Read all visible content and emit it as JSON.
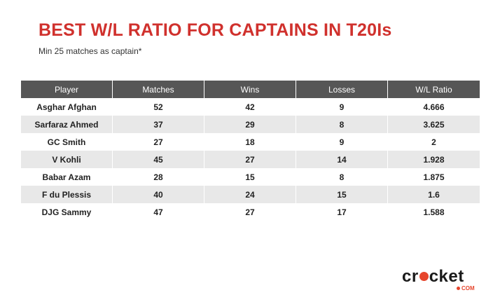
{
  "title": "BEST W/L RATIO FOR CAPTAINS IN T20Is",
  "subtitle": "Min 25 matches as captain*",
  "colors": {
    "title": "#d0312d",
    "header_bg": "#565656",
    "alt_row_bg": "#e8e8e8",
    "logo_accent": "#e6452c"
  },
  "logo": {
    "word_left": "cr",
    "word_right": "cket",
    "suffix": "COM"
  },
  "chart_data": {
    "type": "table",
    "columns": [
      "Player",
      "Matches",
      "Wins",
      "Losses",
      "W/L Ratio"
    ],
    "rows": [
      [
        "Asghar Afghan",
        "52",
        "42",
        "9",
        "4.666"
      ],
      [
        "Sarfaraz Ahmed",
        "37",
        "29",
        "8",
        "3.625"
      ],
      [
        "GC Smith",
        "27",
        "18",
        "9",
        "2"
      ],
      [
        "V Kohli",
        "45",
        "27",
        "14",
        "1.928"
      ],
      [
        "Babar Azam",
        "28",
        "15",
        "8",
        "1.875"
      ],
      [
        "F du Plessis",
        "40",
        "24",
        "15",
        "1.6"
      ],
      [
        "DJG Sammy",
        "47",
        "27",
        "17",
        "1.588"
      ]
    ]
  }
}
